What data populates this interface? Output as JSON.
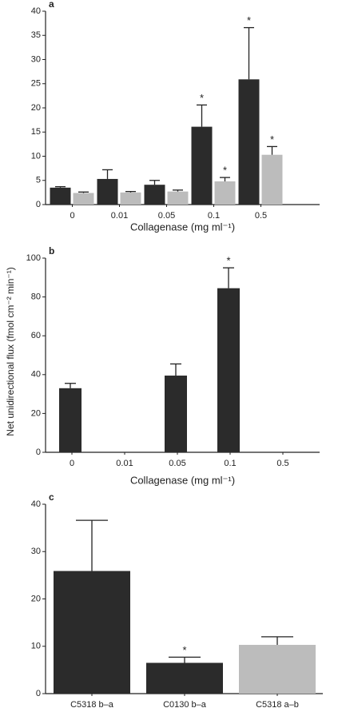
{
  "chart_data": [
    {
      "type": "bar",
      "label": "a",
      "x_label": "Collagenase (mg ml⁻¹)",
      "categories": [
        "0",
        "0.01",
        "0.05",
        "0.1",
        "0.5"
      ],
      "series": [
        {
          "color": "#2b2b2b",
          "values": [
            3.5,
            5.3,
            4.1,
            16.1,
            25.9
          ],
          "errors": [
            0.2,
            1.9,
            0.9,
            4.5,
            10.7
          ],
          "significance": [
            null,
            null,
            null,
            "*",
            "*"
          ]
        },
        {
          "color": "#bcbcbc",
          "values": [
            2.4,
            2.5,
            2.7,
            4.8,
            10.3
          ],
          "errors": [
            0.2,
            0.2,
            0.3,
            0.8,
            1.7
          ],
          "significance": [
            null,
            null,
            null,
            "*",
            "*"
          ]
        }
      ],
      "ylim": [
        0,
        40
      ],
      "yticks": [
        0,
        5,
        10,
        15,
        20,
        25,
        30,
        35,
        40
      ]
    },
    {
      "type": "bar",
      "label": "b",
      "x_label": "Collagenase (mg ml⁻¹)",
      "y_label": "Net unidirectional flux (fmol cm⁻² min⁻¹)",
      "categories": [
        "0",
        "0.01",
        "0.05",
        "0.1",
        "0.5"
      ],
      "series": [
        {
          "color": "#2b2b2b",
          "values": [
            33,
            null,
            39.5,
            84.5,
            null
          ],
          "errors": [
            2.5,
            null,
            6,
            10.5,
            null
          ],
          "significance": [
            null,
            null,
            null,
            "*",
            null
          ]
        }
      ],
      "ylim": [
        0,
        100
      ],
      "yticks": [
        0,
        20,
        40,
        60,
        80,
        100
      ]
    },
    {
      "type": "bar",
      "label": "c",
      "categories": [
        "C5318 b–a",
        "C0130 b–a",
        "C5318 a–b"
      ],
      "series": [
        {
          "colors": [
            "#2b2b2b",
            "#2b2b2b",
            "#bcbcbc"
          ],
          "values": [
            25.9,
            6.5,
            10.3
          ],
          "errors": [
            10.7,
            1.2,
            1.7
          ],
          "significance": [
            null,
            "*",
            null
          ]
        }
      ],
      "ylim": [
        0,
        40
      ],
      "yticks": [
        0,
        10,
        20,
        30,
        40
      ]
    }
  ]
}
